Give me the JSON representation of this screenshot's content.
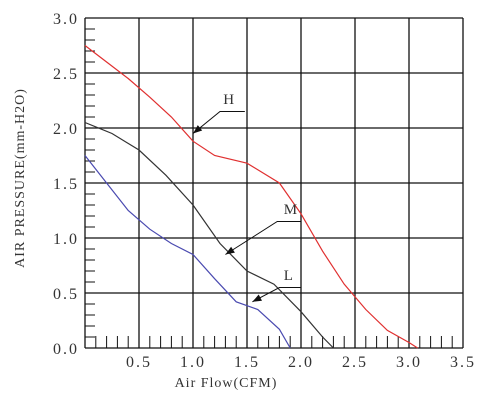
{
  "chart_data": {
    "type": "line",
    "xlabel": "Air Flow(CFM)",
    "ylabel": "AIR PRESSURE(mm-H2O)",
    "xlim": [
      0,
      3.5
    ],
    "ylim": [
      0,
      3.0
    ],
    "x_ticks": [
      "0.5",
      "1.0",
      "1.5",
      "2.0",
      "2.5",
      "3.0",
      "3.5"
    ],
    "y_ticks": [
      "0.0",
      "0.5",
      "1.0",
      "1.5",
      "2.0",
      "2.5",
      "3.0"
    ],
    "grid": true,
    "series": [
      {
        "name": "H",
        "color": "#e03030",
        "x": [
          0,
          0.2,
          0.4,
          0.6,
          0.8,
          1.0,
          1.2,
          1.5,
          1.8,
          2.0,
          2.2,
          2.4,
          2.6,
          2.8,
          3.0,
          3.08
        ],
        "y": [
          2.75,
          2.6,
          2.45,
          2.28,
          2.1,
          1.88,
          1.75,
          1.68,
          1.5,
          1.22,
          0.88,
          0.58,
          0.35,
          0.16,
          0.05,
          0.0
        ]
      },
      {
        "name": "M",
        "color": "#333333",
        "x": [
          0,
          0.25,
          0.5,
          0.75,
          1.0,
          1.25,
          1.5,
          1.75,
          2.0,
          2.2,
          2.3
        ],
        "y": [
          2.05,
          1.95,
          1.8,
          1.57,
          1.3,
          0.95,
          0.7,
          0.58,
          0.33,
          0.1,
          0.0
        ]
      },
      {
        "name": "L",
        "color": "#4a4ab0",
        "x": [
          0,
          0.2,
          0.4,
          0.6,
          0.8,
          1.0,
          1.2,
          1.4,
          1.6,
          1.8,
          1.9
        ],
        "y": [
          1.75,
          1.5,
          1.25,
          1.08,
          0.95,
          0.85,
          0.63,
          0.42,
          0.35,
          0.17,
          0.0
        ]
      }
    ]
  }
}
